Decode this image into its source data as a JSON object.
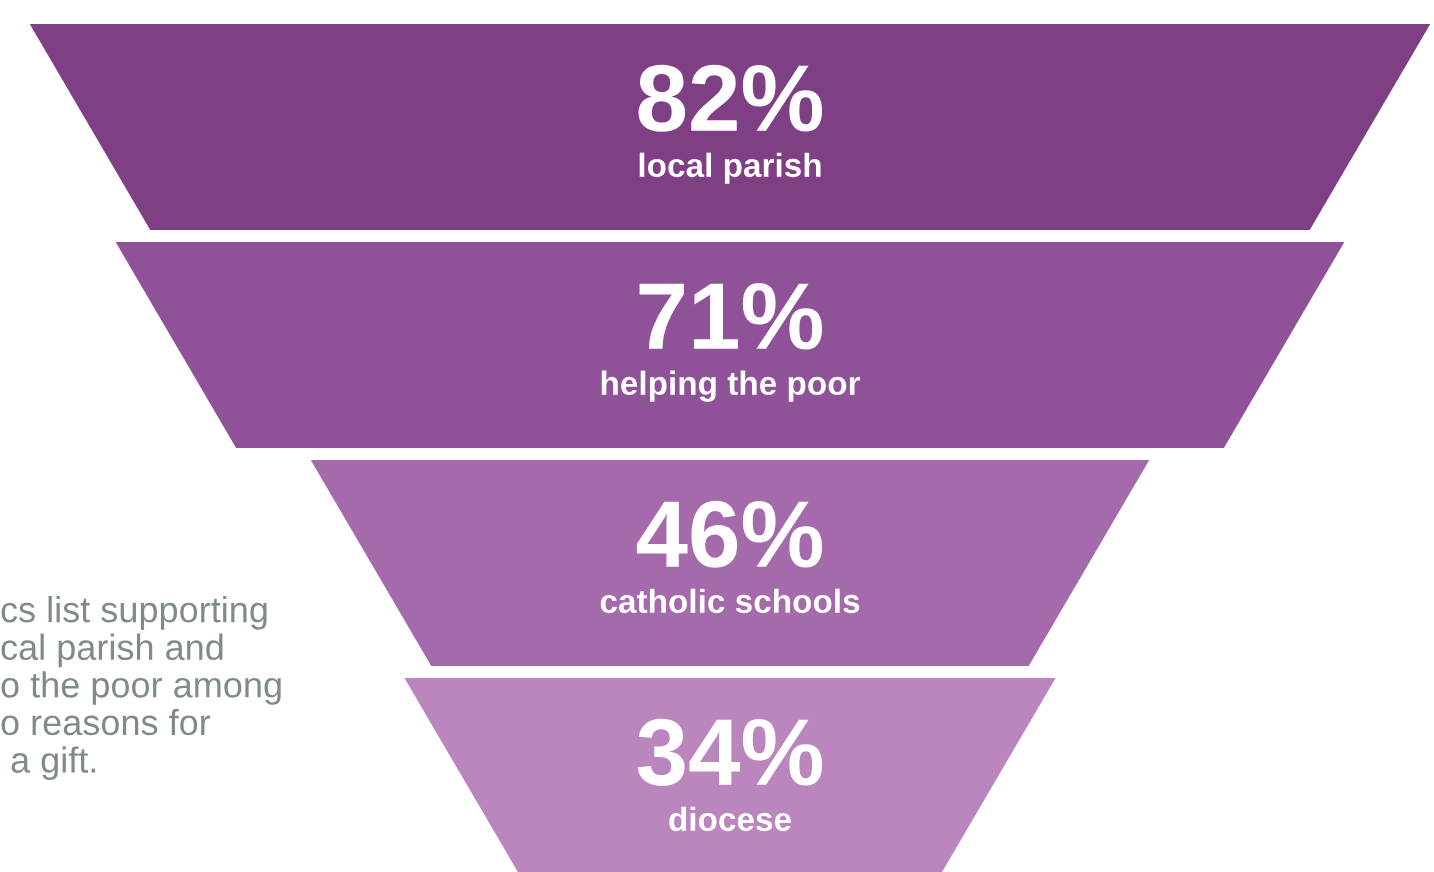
{
  "chart_data": {
    "type": "other",
    "categories": [
      "local parish",
      "helping the poor",
      "catholic schools",
      "diocese"
    ],
    "values": [
      82,
      71,
      46,
      34
    ],
    "value_labels": [
      "82%",
      "71%",
      "46%",
      "34%"
    ],
    "colors": [
      "#7e3f84",
      "#8f5298",
      "#a56aab",
      "#bb86bd"
    ],
    "annotations": [
      "cs list supporting\ncal parish and\no the poor among\no reasons for\n a gift."
    ]
  }
}
